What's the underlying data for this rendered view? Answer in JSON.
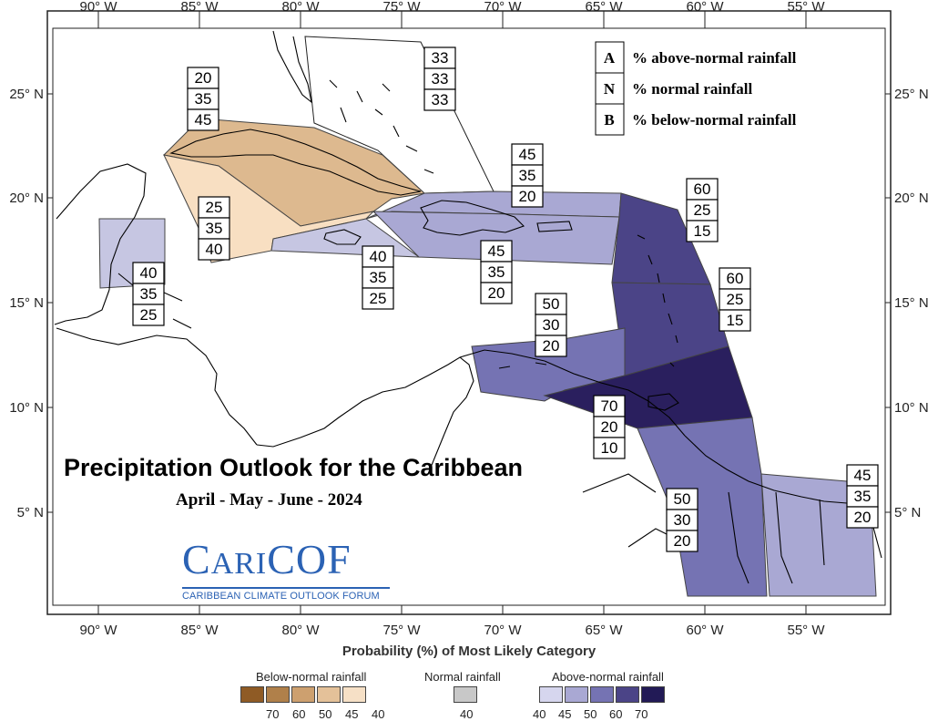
{
  "title": "Precipitation Outlook for the Caribbean",
  "period": "April - May - June - 2024",
  "logo": {
    "main_big1": "C",
    "main_small": "ARI",
    "main_big2": "COF",
    "subtitle": "CARIBBEAN CLIMATE OUTLOOK FORUM"
  },
  "axes": {
    "lon_labels": [
      "90° W",
      "85° W",
      "80° W",
      "75° W",
      "70° W",
      "65° W",
      "60° W",
      "55° W"
    ],
    "lat_labels": [
      "25° N",
      "20° N",
      "15° N",
      "10° N",
      "5° N"
    ]
  },
  "legend": [
    {
      "key": "A",
      "text": "% above-normal rainfall"
    },
    {
      "key": "N",
      "text": "% normal rainfall"
    },
    {
      "key": "B",
      "text": "% below-normal rainfall"
    }
  ],
  "regions": [
    {
      "id": "bahamas",
      "values": [
        "33",
        "33",
        "33"
      ],
      "fill": "#ffffff"
    },
    {
      "id": "cuba",
      "values": [
        "20",
        "35",
        "45"
      ],
      "fill": "#ddb98f"
    },
    {
      "id": "western-caribbean",
      "values": [
        "25",
        "35",
        "40"
      ],
      "fill": "#f8dfc2"
    },
    {
      "id": "belize",
      "values": [
        "40",
        "35",
        "25"
      ],
      "fill": "#c6c6e2"
    },
    {
      "id": "jamaica",
      "values": [
        "40",
        "35",
        "25"
      ],
      "fill": "#c6c6e2"
    },
    {
      "id": "hispaniola-north",
      "values": [
        "45",
        "35",
        "20"
      ],
      "fill": "#a9a8d3"
    },
    {
      "id": "hispaniola-puerto-rico",
      "values": [
        "45",
        "35",
        "20"
      ],
      "fill": "#a9a8d3"
    },
    {
      "id": "northern-leewards",
      "values": [
        "60",
        "25",
        "15"
      ],
      "fill": "#4b4487"
    },
    {
      "id": "windwards",
      "values": [
        "60",
        "25",
        "15"
      ],
      "fill": "#4b4487"
    },
    {
      "id": "abc-islands",
      "values": [
        "50",
        "30",
        "20"
      ],
      "fill": "#7573b3"
    },
    {
      "id": "trinidad-tobago",
      "values": [
        "70",
        "20",
        "10"
      ],
      "fill": "#2a1f5e"
    },
    {
      "id": "guyana",
      "values": [
        "50",
        "30",
        "20"
      ],
      "fill": "#7573b3"
    },
    {
      "id": "suriname-french-guiana",
      "values": [
        "45",
        "35",
        "20"
      ],
      "fill": "#a9a8d3"
    }
  ],
  "scale": {
    "title": "Probability (%) of Most Likely Category",
    "below": {
      "label": "Below-normal rainfall",
      "ticks": [
        "70",
        "60",
        "50",
        "45",
        "40"
      ],
      "colors": [
        "#8f5b25",
        "#b0804a",
        "#cda06f",
        "#e4c199",
        "#f6e0c6"
      ]
    },
    "normal": {
      "label": "Normal rainfall",
      "ticks": [
        "40"
      ],
      "colors": [
        "#c8c8c8"
      ]
    },
    "above": {
      "label": "Above-normal rainfall",
      "ticks": [
        "40",
        "45",
        "50",
        "60",
        "70"
      ],
      "colors": [
        "#d6d6ee",
        "#a9a8d3",
        "#7573b3",
        "#4b4487",
        "#221a56"
      ]
    }
  }
}
